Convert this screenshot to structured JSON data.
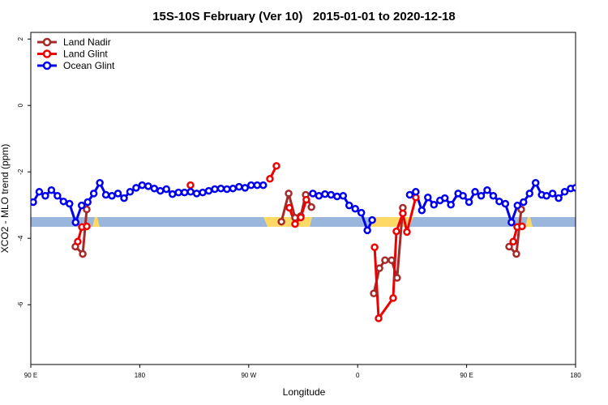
{
  "chart_data": {
    "type": "line",
    "title": "15S-10S February (Ver 10)   2015-01-01 to 2020-12-18",
    "x_label": "Longitude",
    "y_label": "XCO2 - MLO trend (ppm)",
    "xlim": [
      90,
      540
    ],
    "ylim": [
      -7.8,
      2.2
    ],
    "xticks": [
      {
        "value": 90,
        "label": "90 E"
      },
      {
        "value": 180,
        "label": "180"
      },
      {
        "value": 270,
        "label": "90 W"
      },
      {
        "value": 360,
        "label": "0"
      },
      {
        "value": 450,
        "label": "90 E"
      },
      {
        "value": 540,
        "label": "180"
      }
    ],
    "yticks": [
      -6,
      -4,
      -2,
      0,
      2
    ],
    "legend": "top-left",
    "series": [
      {
        "name": "Land Nadir",
        "color": "#a52a2a",
        "x": [
          126.8,
          132.9,
          136.2,
          null,
          297.0,
          303.0,
          308.3,
          313.0,
          317.1,
          321.8,
          null,
          373.3,
          378.0,
          382.6,
          388.0,
          392.6,
          397.3,
          null,
          485.1,
          491.1,
          495.1
        ],
        "values": [
          -4.25,
          -4.47,
          -3.13,
          null,
          -3.5,
          -2.65,
          -3.38,
          -3.33,
          -2.69,
          -3.06,
          null,
          -5.66,
          -4.9,
          -4.66,
          -4.66,
          -5.19,
          -3.08,
          null,
          -4.25,
          -4.47,
          -3.13
        ]
      },
      {
        "name": "Land Glint",
        "color": "#ee0000",
        "x": [
          128.8,
          132.2,
          136.2,
          null,
          221.9,
          null,
          287.5,
          292.9,
          null,
          303.6,
          308.3,
          313.0,
          317.6,
          null,
          374.0,
          377.3,
          389.3,
          392.0,
          397.3,
          400.7,
          408.0,
          null,
          488.5,
          491.8,
          495.8
        ],
        "values": [
          -4.1,
          -3.66,
          -3.64,
          null,
          -2.4,
          null,
          -2.21,
          -1.82,
          null,
          -3.08,
          -3.57,
          -3.37,
          -2.84,
          null,
          -4.27,
          -6.41,
          -5.8,
          -3.79,
          -3.25,
          -3.81,
          -2.77,
          null,
          -4.1,
          -3.66,
          -3.64
        ]
      },
      {
        "name": "Ocean Glint",
        "color": "#0000ee",
        "x": [
          92,
          97,
          102,
          107,
          112,
          117,
          122,
          127,
          132,
          137,
          142,
          147,
          152,
          157,
          162,
          167,
          172,
          177,
          182,
          187,
          192,
          197,
          202,
          207,
          212,
          217,
          222,
          227,
          232,
          237,
          242,
          247,
          252,
          257,
          262,
          267,
          272,
          277,
          282,
          null,
          323,
          328,
          333,
          338,
          343,
          348,
          353,
          358,
          363,
          368,
          372,
          null,
          403,
          408,
          413,
          418,
          423,
          428,
          432,
          437,
          443,
          447,
          452,
          457,
          462,
          467,
          472,
          477,
          482,
          487,
          492,
          497,
          502,
          507,
          512,
          516,
          521,
          526,
          531,
          536,
          540
        ],
        "values": [
          -2.91,
          -2.6,
          -2.72,
          -2.55,
          -2.72,
          -2.89,
          -2.96,
          -3.52,
          -3.01,
          -2.91,
          -2.65,
          -2.33,
          -2.69,
          -2.72,
          -2.65,
          -2.79,
          -2.6,
          -2.48,
          -2.4,
          -2.43,
          -2.5,
          -2.57,
          -2.52,
          -2.67,
          -2.62,
          -2.62,
          -2.6,
          -2.65,
          -2.62,
          -2.57,
          -2.52,
          -2.5,
          -2.52,
          -2.5,
          -2.45,
          -2.48,
          -2.4,
          -2.4,
          -2.4,
          null,
          -2.65,
          -2.72,
          -2.67,
          -2.69,
          -2.74,
          -2.72,
          -3.01,
          -3.11,
          -3.23,
          -3.76,
          -3.45,
          null,
          -2.69,
          -2.6,
          -3.16,
          -2.77,
          -2.99,
          -2.86,
          -2.79,
          -2.99,
          -2.65,
          -2.72,
          -2.91,
          -2.6,
          -2.72,
          -2.55,
          -2.72,
          -2.89,
          -2.96,
          -3.52,
          -3.01,
          -2.91,
          -2.65,
          -2.33,
          -2.69,
          -2.72,
          -2.65,
          -2.79,
          -2.6,
          -2.5,
          -2.48
        ]
      }
    ]
  }
}
